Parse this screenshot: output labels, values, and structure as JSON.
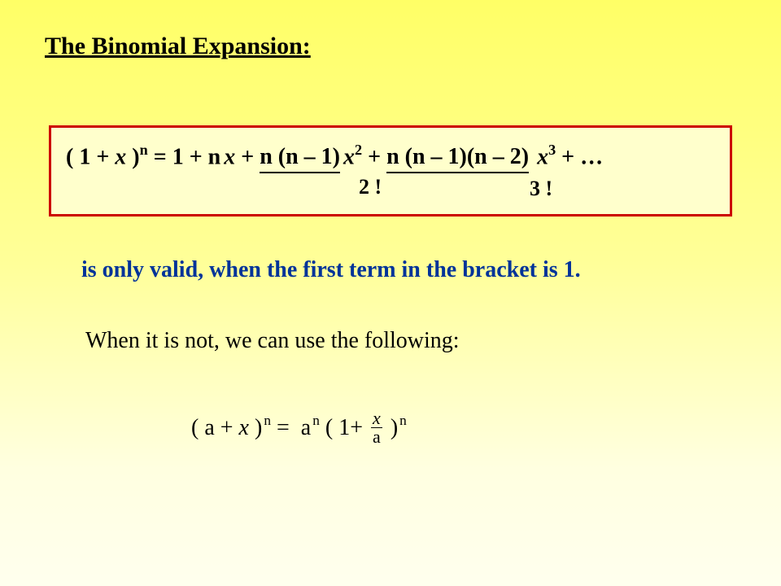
{
  "title": "The Binomial Expansion:",
  "formula": {
    "part_lhs_open": "( 1 + ",
    "part_x": "x",
    "part_close": " )",
    "part_exp_n": "n",
    "part_eq": " = 1 + ",
    "part_t1_n": "n",
    "part_t1_x": "x",
    "part_plus1": " + ",
    "part_t2_under": "n (n – 1)",
    "part_t2_x": "x",
    "part_t2_exp": "2",
    "part_plus2": " + ",
    "part_t3_under": "n (n – 1)(n – 2)",
    "part_t3_x": "x",
    "part_t3_exp": "3",
    "part_tail": " + …",
    "denom2": "2 !",
    "denom3": "3 !"
  },
  "note": "is only valid, when the first term in the bracket is 1.",
  "explain": "When it is not, we can use the following:",
  "formula2": {
    "lhs_open": "( a + ",
    "lhs_x": "x",
    "lhs_close": " )",
    "lhs_exp": "n",
    "eq": " = ",
    "a": "a",
    "a_exp": "n",
    "open2": " ( 1",
    "plus": "+ ",
    "frac_num": "x",
    "frac_den": "a",
    "close2": " )",
    "close2_exp": "n"
  },
  "style": {
    "bg_gradient_top": "#ffff66",
    "bg_gradient_bottom": "#ffffee",
    "box_border": "#cc0000",
    "box_bg": "#ffffcc",
    "note_color": "#003399",
    "text_color": "#000000",
    "title_fontsize": 30,
    "body_fontsize": 28,
    "font_family": "Times New Roman"
  }
}
